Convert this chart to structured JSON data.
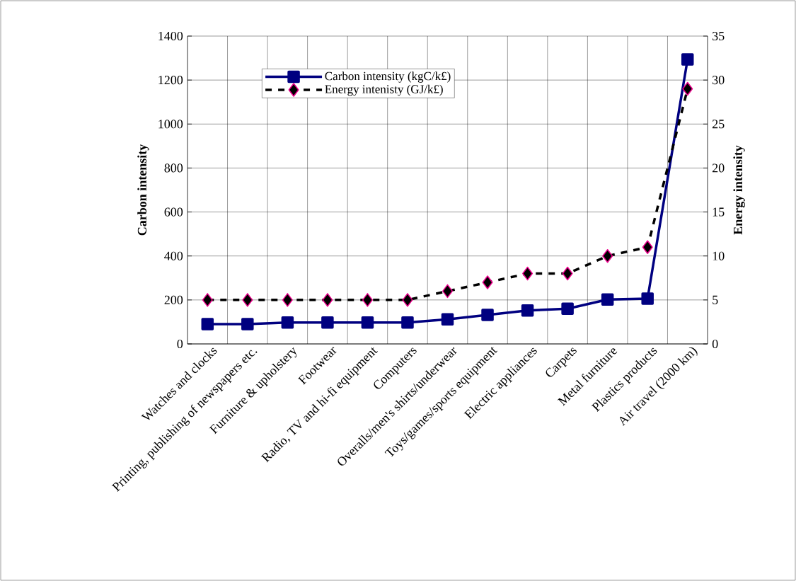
{
  "chart_data": {
    "type": "line",
    "categories": [
      "Watches and clocks",
      "Printing, publishing of newspapers etc.",
      "Furniture & upholstery",
      "Footwear",
      "Radio, TV and hi-fi equipment",
      "Computers",
      "Overalls/men's shirts/underwear",
      "Toys/games/sports equipment",
      "Electric appliances",
      "Carpets",
      "Metal furniture",
      "Plastics products",
      "Air travel (2000 km)"
    ],
    "series": [
      {
        "name": "Carbon intensity (kgC/k£)",
        "color": "#000080",
        "marker": "square",
        "line_style": "solid",
        "values": [
          90,
          90,
          97,
          97,
          97,
          97,
          112,
          132,
          152,
          160,
          202,
          206,
          1294
        ]
      },
      {
        "name": "Energy intenisty (GJ/k£)",
        "color": "#000000",
        "marker": "diamond",
        "line_style": "dashed",
        "axis": "y2",
        "values": [
          5,
          5,
          5,
          5,
          5,
          5,
          6,
          7,
          8,
          8,
          10,
          11,
          29
        ]
      }
    ],
    "ylabel": "Carbon intensity",
    "y2label": "Energy intensity",
    "ylim": [
      0,
      1400
    ],
    "yticks": [
      0,
      200,
      400,
      600,
      800,
      1000,
      1200,
      1400
    ],
    "y2lim": [
      0,
      35
    ],
    "y2ticks": [
      0,
      5,
      10,
      15,
      20,
      25,
      30,
      35
    ],
    "grid": true,
    "legend": "top left"
  }
}
